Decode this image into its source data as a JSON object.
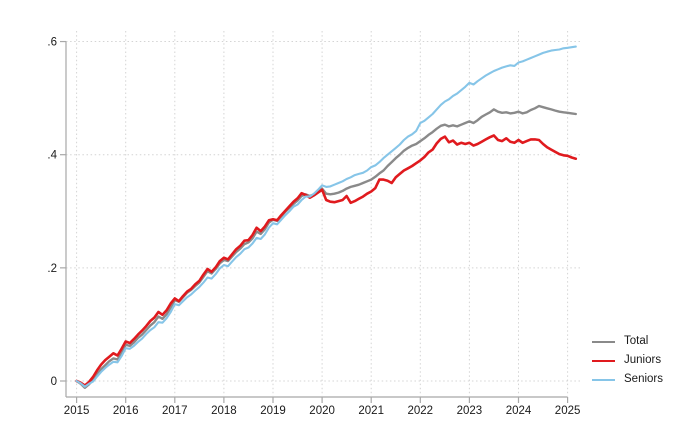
{
  "chart_data": {
    "type": "line",
    "title": "",
    "xlabel": "",
    "ylabel": "",
    "x_unit": "monthly",
    "x_start_year": 2015,
    "x_end": 2025.17,
    "x_tick_labels": [
      "2015",
      "2016",
      "2017",
      "2018",
      "2019",
      "2020",
      "2021",
      "2022",
      "2023",
      "2024",
      "2025"
    ],
    "x_tick_values": [
      2015,
      2016,
      2017,
      2018,
      2019,
      2020,
      2021,
      2022,
      2023,
      2024,
      2025
    ],
    "y_tick_labels": [
      "0",
      ".2",
      ".4",
      ".6"
    ],
    "y_tick_values": [
      0,
      0.2,
      0.4,
      0.6
    ],
    "ylim": [
      -0.028,
      0.62
    ],
    "grid": "dotted both axes",
    "legend_position": "bottom-right outside plot",
    "axis_color": "#a8a8a8",
    "grid_color": "#d4d4d4",
    "text_color": "#1a1a1a",
    "series": [
      {
        "name": "Total",
        "color": "#8a8a8a",
        "line_width": 2.4,
        "values": [
          0.0,
          -0.005,
          -0.012,
          -0.006,
          0.002,
          0.012,
          0.021,
          0.028,
          0.035,
          0.04,
          0.038,
          0.05,
          0.064,
          0.062,
          0.068,
          0.076,
          0.082,
          0.09,
          0.098,
          0.104,
          0.114,
          0.11,
          0.118,
          0.13,
          0.143,
          0.14,
          0.148,
          0.156,
          0.161,
          0.168,
          0.174,
          0.184,
          0.194,
          0.19,
          0.198,
          0.208,
          0.214,
          0.212,
          0.22,
          0.228,
          0.234,
          0.242,
          0.245,
          0.252,
          0.264,
          0.26,
          0.268,
          0.28,
          0.285,
          0.283,
          0.291,
          0.299,
          0.306,
          0.313,
          0.319,
          0.327,
          0.33,
          0.327,
          0.33,
          0.336,
          0.34,
          0.331,
          0.33,
          0.331,
          0.333,
          0.336,
          0.34,
          0.343,
          0.345,
          0.347,
          0.35,
          0.353,
          0.356,
          0.361,
          0.367,
          0.372,
          0.38,
          0.387,
          0.394,
          0.4,
          0.407,
          0.412,
          0.416,
          0.419,
          0.424,
          0.429,
          0.435,
          0.44,
          0.446,
          0.451,
          0.453,
          0.45,
          0.452,
          0.45,
          0.453,
          0.456,
          0.459,
          0.456,
          0.461,
          0.467,
          0.471,
          0.475,
          0.48,
          0.476,
          0.474,
          0.475,
          0.473,
          0.474,
          0.476,
          0.473,
          0.475,
          0.479,
          0.482,
          0.486,
          0.484,
          0.482,
          0.48,
          0.478,
          0.476,
          0.475,
          0.474,
          0.473,
          0.472
        ]
      },
      {
        "name": "Juniors",
        "color": "#e01a1e",
        "line_width": 2.6,
        "values": [
          0.0,
          -0.003,
          -0.008,
          -0.002,
          0.007,
          0.019,
          0.029,
          0.037,
          0.043,
          0.049,
          0.045,
          0.057,
          0.07,
          0.067,
          0.074,
          0.082,
          0.089,
          0.097,
          0.106,
          0.112,
          0.122,
          0.117,
          0.125,
          0.137,
          0.146,
          0.141,
          0.15,
          0.158,
          0.163,
          0.171,
          0.177,
          0.188,
          0.198,
          0.193,
          0.201,
          0.212,
          0.218,
          0.215,
          0.224,
          0.233,
          0.239,
          0.248,
          0.249,
          0.258,
          0.271,
          0.265,
          0.273,
          0.284,
          0.286,
          0.284,
          0.293,
          0.301,
          0.309,
          0.317,
          0.323,
          0.332,
          0.329,
          0.324,
          0.328,
          0.333,
          0.338,
          0.32,
          0.317,
          0.316,
          0.318,
          0.32,
          0.327,
          0.315,
          0.318,
          0.322,
          0.326,
          0.331,
          0.335,
          0.341,
          0.356,
          0.356,
          0.354,
          0.35,
          0.36,
          0.366,
          0.372,
          0.376,
          0.38,
          0.385,
          0.39,
          0.396,
          0.404,
          0.409,
          0.42,
          0.428,
          0.432,
          0.422,
          0.425,
          0.418,
          0.421,
          0.419,
          0.421,
          0.416,
          0.419,
          0.423,
          0.427,
          0.431,
          0.434,
          0.426,
          0.424,
          0.429,
          0.423,
          0.421,
          0.426,
          0.421,
          0.424,
          0.427,
          0.427,
          0.426,
          0.419,
          0.413,
          0.409,
          0.405,
          0.401,
          0.399,
          0.398,
          0.395,
          0.393
        ]
      },
      {
        "name": "Seniors",
        "color": "#86c5e8",
        "line_width": 2.1,
        "values": [
          0.0,
          -0.004,
          -0.01,
          -0.005,
          -0.001,
          0.008,
          0.016,
          0.023,
          0.029,
          0.034,
          0.033,
          0.044,
          0.058,
          0.057,
          0.062,
          0.069,
          0.075,
          0.083,
          0.09,
          0.095,
          0.104,
          0.103,
          0.111,
          0.122,
          0.136,
          0.134,
          0.141,
          0.148,
          0.153,
          0.16,
          0.166,
          0.174,
          0.183,
          0.181,
          0.189,
          0.199,
          0.205,
          0.203,
          0.211,
          0.219,
          0.225,
          0.233,
          0.236,
          0.243,
          0.253,
          0.251,
          0.259,
          0.271,
          0.279,
          0.277,
          0.285,
          0.293,
          0.3,
          0.308,
          0.312,
          0.32,
          0.326,
          0.326,
          0.331,
          0.338,
          0.346,
          0.343,
          0.344,
          0.347,
          0.35,
          0.353,
          0.357,
          0.36,
          0.364,
          0.366,
          0.368,
          0.372,
          0.378,
          0.381,
          0.387,
          0.394,
          0.4,
          0.406,
          0.412,
          0.418,
          0.426,
          0.432,
          0.436,
          0.442,
          0.456,
          0.46,
          0.466,
          0.472,
          0.48,
          0.488,
          0.494,
          0.498,
          0.504,
          0.508,
          0.514,
          0.52,
          0.527,
          0.524,
          0.53,
          0.535,
          0.54,
          0.544,
          0.548,
          0.551,
          0.554,
          0.556,
          0.558,
          0.557,
          0.563,
          0.565,
          0.568,
          0.571,
          0.574,
          0.577,
          0.58,
          0.582,
          0.584,
          0.585,
          0.586,
          0.588,
          0.589,
          0.59,
          0.591
        ]
      }
    ]
  },
  "legend": {
    "items": [
      {
        "label": "Total"
      },
      {
        "label": "Juniors"
      },
      {
        "label": "Seniors"
      }
    ]
  }
}
